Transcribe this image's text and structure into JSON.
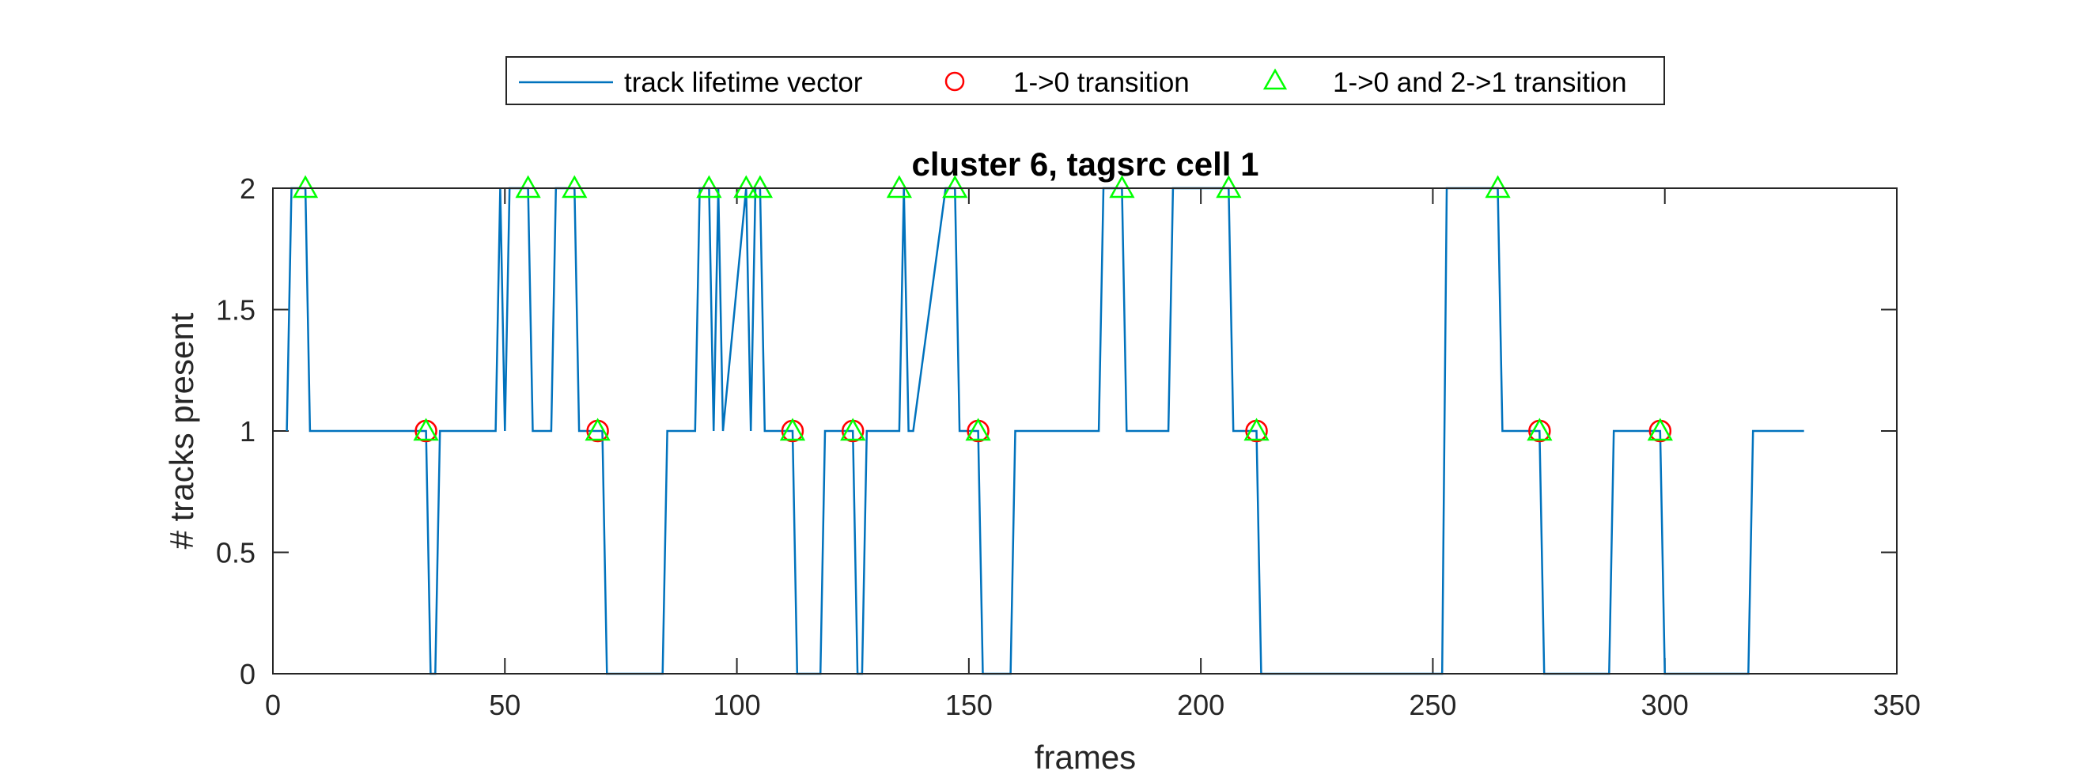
{
  "chart_data": {
    "type": "line",
    "title": "cluster 6, tagsrc cell 1",
    "xlabel": "frames",
    "ylabel": "# tracks present",
    "xlim": [
      0,
      350
    ],
    "ylim": [
      0,
      2
    ],
    "xticks": [
      0,
      50,
      100,
      150,
      200,
      250,
      300,
      350
    ],
    "yticks": [
      0,
      0.5,
      1,
      1.5,
      2
    ],
    "xtick_labels": [
      "0",
      "50",
      "100",
      "150",
      "200",
      "250",
      "300",
      "350"
    ],
    "ytick_labels": [
      "0",
      "0.5",
      "1",
      "1.5",
      "2"
    ],
    "grid": false,
    "legend_position": "top, outside (horizontal)",
    "colors": {
      "line": "#0072BD",
      "circle": "#FF0000",
      "triangle": "#00FF00"
    },
    "series": [
      {
        "name": "track lifetime vector",
        "style": "line",
        "x": [
          3,
          4,
          7,
          8,
          33,
          34,
          35,
          36,
          48,
          49,
          50,
          51,
          52,
          53,
          55,
          56,
          60,
          61,
          62,
          65,
          66,
          71,
          72,
          84,
          85,
          91,
          92,
          93,
          94,
          95,
          96,
          97,
          102,
          103,
          104,
          105,
          106,
          107,
          112,
          113,
          118,
          119,
          125,
          126,
          127,
          128,
          135,
          136,
          137,
          138,
          145,
          146,
          147,
          148,
          152,
          153,
          159,
          160,
          178,
          179,
          183,
          184,
          193,
          194,
          206,
          207,
          212,
          213,
          252,
          253,
          264,
          265,
          273,
          274,
          288,
          289,
          299,
          300,
          318,
          319,
          330
        ],
        "y": [
          1,
          2,
          2,
          1,
          1,
          0,
          0,
          1,
          1,
          2,
          1,
          2,
          2,
          2,
          2,
          1,
          1,
          2,
          2,
          2,
          1,
          1,
          0,
          0,
          1,
          1,
          2,
          2,
          2,
          1,
          2,
          1,
          2,
          1,
          2,
          2,
          1,
          1,
          1,
          0,
          0,
          1,
          1,
          0,
          0,
          1,
          1,
          2,
          1,
          1,
          2,
          2,
          2,
          1,
          1,
          0,
          0,
          1,
          1,
          2,
          2,
          1,
          1,
          2,
          2,
          1,
          1,
          0,
          0,
          2,
          2,
          1,
          1,
          0,
          0,
          1,
          1,
          0,
          0,
          1,
          1
        ]
      },
      {
        "name": "1->0 transition",
        "style": "marker-circle",
        "x": [
          33,
          70,
          112,
          125,
          152,
          212,
          273,
          299
        ],
        "y": [
          1,
          1,
          1,
          1,
          1,
          1,
          1,
          1
        ]
      },
      {
        "name": "1->0 and 2->1 transition",
        "style": "marker-triangle",
        "x": [
          7,
          55,
          65,
          94,
          102,
          105,
          135,
          147,
          183,
          206,
          264,
          33,
          70,
          112,
          125,
          152,
          212,
          273,
          299
        ],
        "y": [
          2,
          2,
          2,
          2,
          2,
          2,
          2,
          2,
          2,
          2,
          2,
          1,
          1,
          1,
          1,
          1,
          1,
          1,
          1
        ]
      }
    ]
  }
}
